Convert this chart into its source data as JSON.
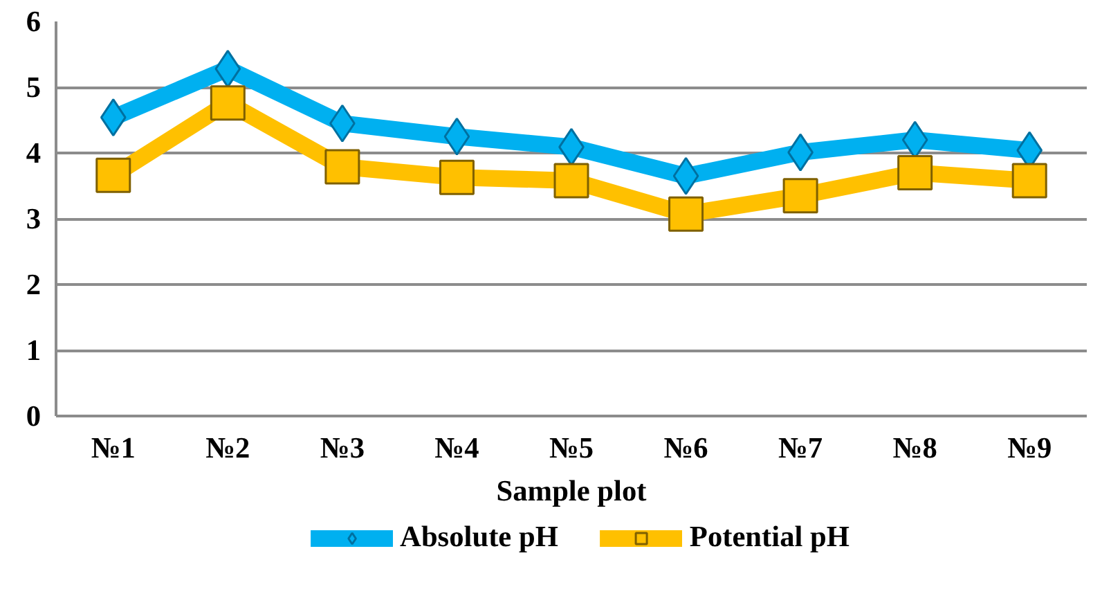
{
  "chart_data": {
    "type": "line",
    "xlabel": "Sample plot",
    "categories": [
      "№1",
      "№2",
      "№3",
      "№4",
      "№5",
      "№6",
      "№7",
      "№8",
      "№9"
    ],
    "series": [
      {
        "name": "Absolute pH",
        "color": "#00b0f0",
        "marker": "diamond",
        "values": [
          4.54,
          5.28,
          4.45,
          4.25,
          4.09,
          3.65,
          4.01,
          4.2,
          4.04
        ]
      },
      {
        "name": "Potential pH",
        "color": "#ffc000",
        "marker": "square",
        "values": [
          3.66,
          4.76,
          3.79,
          3.63,
          3.58,
          3.07,
          3.35,
          3.7,
          3.58
        ]
      }
    ],
    "ylim": [
      0,
      6
    ],
    "yticks": [
      0,
      1,
      2,
      3,
      4,
      5,
      6
    ],
    "grid": "y",
    "legend": "bottom",
    "line_style": "solid"
  }
}
